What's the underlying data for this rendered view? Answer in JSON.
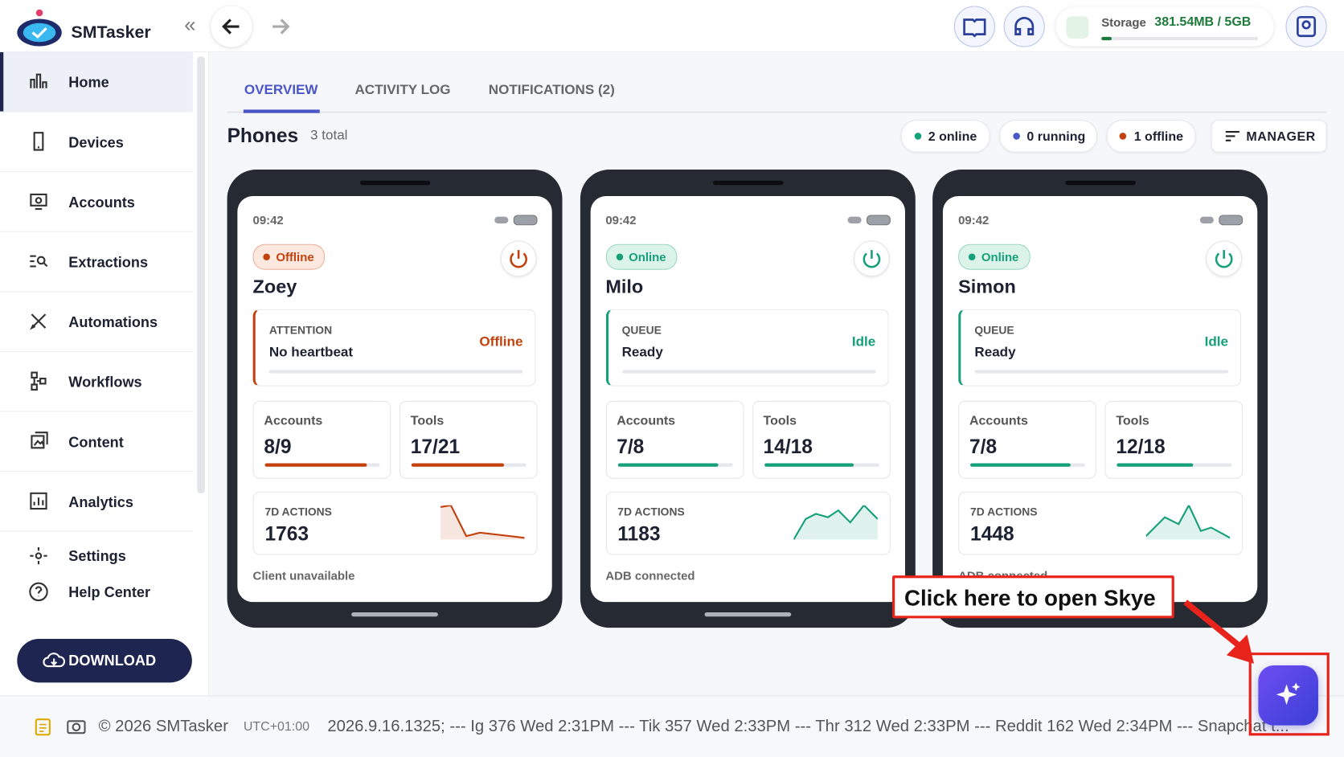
{
  "header": {
    "app_name": "SMTasker",
    "storage_label": "Storage",
    "storage_value": "381.54MB / 5GB"
  },
  "sidebar": {
    "items": [
      "Home",
      "Devices",
      "Accounts",
      "Extractions",
      "Automations",
      "Workflows",
      "Content",
      "Analytics",
      "Settings",
      "Help Center"
    ],
    "download": "DOWNLOAD"
  },
  "tabs": [
    "OVERVIEW",
    "ACTIVITY LOG",
    "NOTIFICATIONS (2)"
  ],
  "section": {
    "title": "Phones",
    "count": "3 total",
    "chips": [
      "2 online",
      "0 running",
      "1 offline"
    ],
    "manager": "MANAGER"
  },
  "phones": [
    {
      "time": "09:42",
      "status": "Offline",
      "name": "Zoey",
      "panel_label": "ATTENTION",
      "panel_text": "No heartbeat",
      "panel_status": "Offline",
      "accounts_label": "Accounts",
      "accounts": "8/9",
      "tools_label": "Tools",
      "tools": "17/21",
      "actions_label": "7D ACTIONS",
      "actions": "1763",
      "footer": "Client unavailable"
    },
    {
      "time": "09:42",
      "status": "Online",
      "name": "Milo",
      "panel_label": "QUEUE",
      "panel_text": "Ready",
      "panel_status": "Idle",
      "accounts_label": "Accounts",
      "accounts": "7/8",
      "tools_label": "Tools",
      "tools": "14/18",
      "actions_label": "7D ACTIONS",
      "actions": "1183",
      "footer": "ADB connected"
    },
    {
      "time": "09:42",
      "status": "Online",
      "name": "Simon",
      "panel_label": "QUEUE",
      "panel_text": "Ready",
      "panel_status": "Idle",
      "accounts_label": "Accounts",
      "accounts": "7/8",
      "tools_label": "Tools",
      "tools": "12/18",
      "actions_label": "7D ACTIONS",
      "actions": "1448",
      "footer": "ADB connected"
    }
  ],
  "callout": "Click here to open Skye",
  "footer": {
    "copyright": "© 2026 SMTasker",
    "timezone": "UTC+01:00",
    "ticker": "2026.9.16.1325; --- Ig 376 Wed 2:31PM --- Tik 357 Wed 2:33PM --- Thr 312 Wed 2:33PM --- Reddit 162 Wed 2:34PM --- Snapchat t..."
  }
}
